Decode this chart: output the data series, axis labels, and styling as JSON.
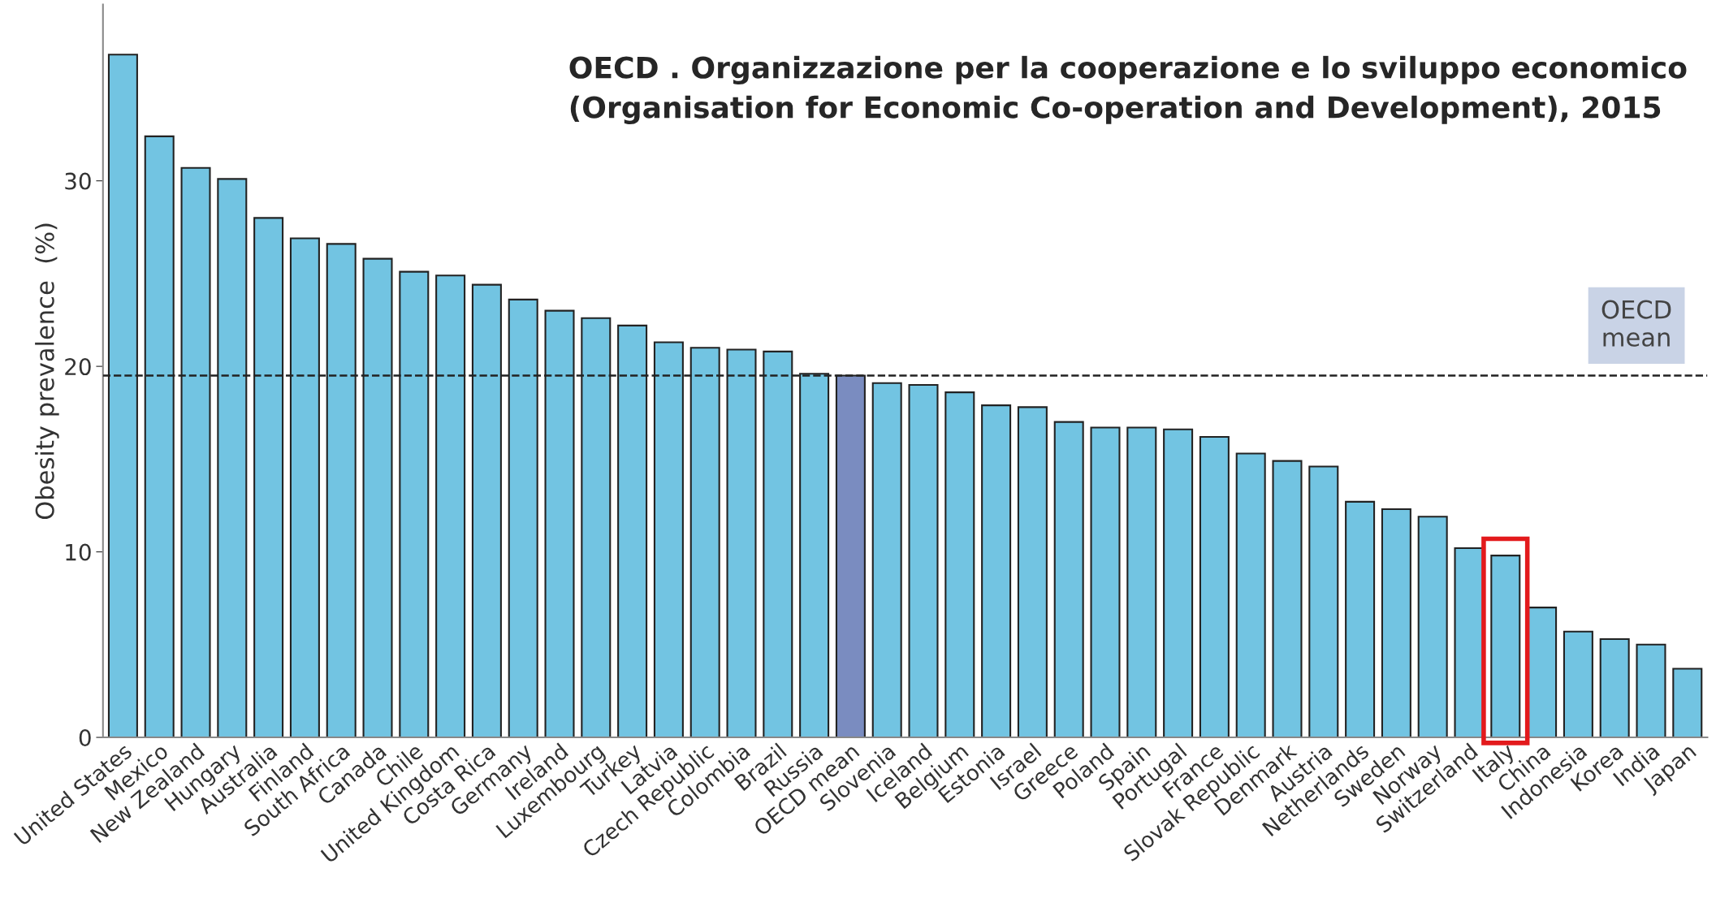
{
  "chart_data": {
    "type": "bar",
    "annotations": [
      "OECD . Organizzazione per la cooperazione e lo sviluppo economico\n(Organisation for Economic Co-operation and Development), 2015"
    ],
    "ylabel": "Obesity prevalence  (%)",
    "categories": [
      "United States",
      "Mexico",
      "New Zealand",
      "Hungary",
      "Australia",
      "Finland",
      "South Africa",
      "Canada",
      "Chile",
      "United Kingdom",
      "Costa Rica",
      "Germany",
      "Ireland",
      "Luxembourg",
      "Turkey",
      "Latvia",
      "Czech Republic",
      "Colombia",
      "Brazil",
      "Russia",
      "OECD mean",
      "Slovenia",
      "Iceland",
      "Belgium",
      "Estonia",
      "Israel",
      "Greece",
      "Poland",
      "Spain",
      "Portugal",
      "France",
      "Slovak Republic",
      "Denmark",
      "Austria",
      "Netherlands",
      "Sweden",
      "Norway",
      "Switzerland",
      "Italy",
      "China",
      "Indonesia",
      "Korea",
      "India",
      "Japan"
    ],
    "values": [
      36.8,
      32.4,
      30.7,
      30.1,
      28.0,
      26.9,
      26.6,
      25.8,
      25.1,
      24.9,
      24.4,
      23.6,
      23.0,
      22.6,
      22.2,
      21.3,
      21.0,
      20.9,
      20.8,
      19.6,
      19.5,
      19.1,
      19.0,
      18.6,
      17.9,
      17.8,
      17.0,
      16.7,
      16.7,
      16.6,
      16.2,
      15.3,
      14.9,
      14.6,
      12.7,
      12.3,
      11.9,
      10.2,
      9.8,
      7.0,
      5.7,
      5.3,
      5.0,
      3.7
    ],
    "colors": [
      "#72c4e2",
      "#72c4e2",
      "#72c4e2",
      "#72c4e2",
      "#72c4e2",
      "#72c4e2",
      "#72c4e2",
      "#72c4e2",
      "#72c4e2",
      "#72c4e2",
      "#72c4e2",
      "#72c4e2",
      "#72c4e2",
      "#72c4e2",
      "#72c4e2",
      "#72c4e2",
      "#72c4e2",
      "#72c4e2",
      "#72c4e2",
      "#72c4e2",
      "#7a8cc0",
      "#72c4e2",
      "#72c4e2",
      "#72c4e2",
      "#72c4e2",
      "#72c4e2",
      "#72c4e2",
      "#72c4e2",
      "#72c4e2",
      "#72c4e2",
      "#72c4e2",
      "#72c4e2",
      "#72c4e2",
      "#72c4e2",
      "#72c4e2",
      "#72c4e2",
      "#72c4e2",
      "#72c4e2",
      "#72c4e2",
      "#72c4e2",
      "#72c4e2",
      "#72c4e2",
      "#72c4e2",
      "#72c4e2"
    ],
    "ylim": [
      0,
      39.5
    ],
    "yticks": [
      0,
      10,
      20,
      30
    ],
    "ref_lines": [
      {
        "axis": "y",
        "value": 19.5,
        "label": "OECD\nmean",
        "color": "#222222",
        "line_style": "dashed"
      }
    ],
    "grid": false
  }
}
